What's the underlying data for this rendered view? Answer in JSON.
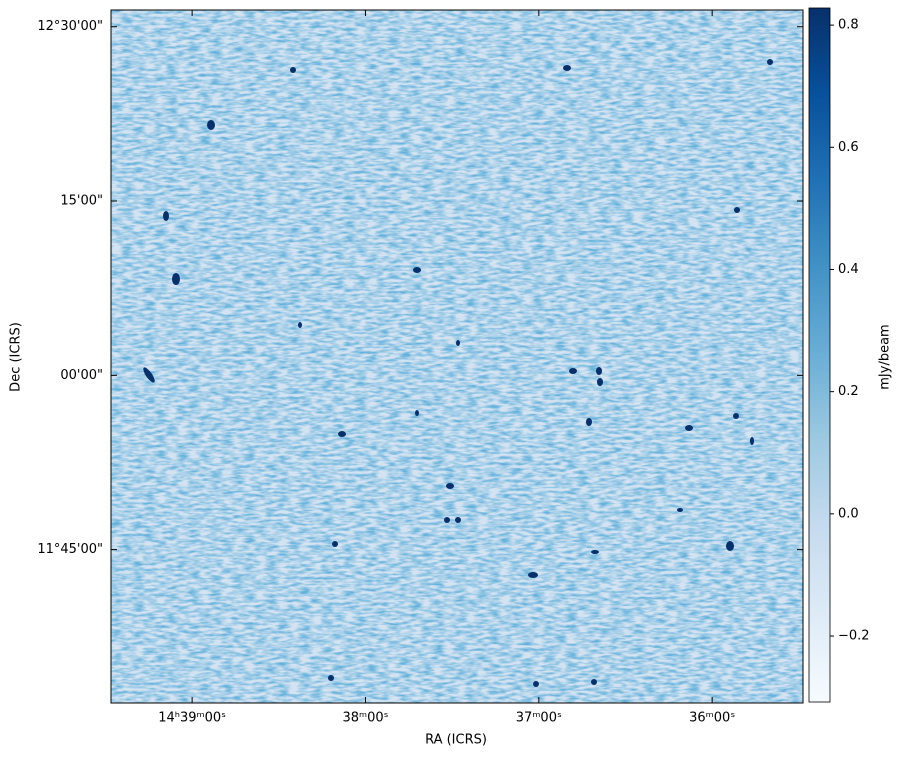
{
  "chart_data": {
    "type": "image",
    "xlabel": "RA (ICRS)",
    "ylabel": "Dec (ICRS)",
    "xlim": [
      219.867,
      218.869
    ],
    "xticks": [
      {
        "value": 219.75,
        "label": "14ʰ39ᵐ00ˢ"
      },
      {
        "value": 219.5,
        "label": "38ᵐ00ˢ"
      },
      {
        "value": 219.25,
        "label": "37ᵐ00ˢ"
      },
      {
        "value": 219.0,
        "label": "36ᵐ00ˢ"
      }
    ],
    "ylim": [
      11.53,
      12.524
    ],
    "yticks": [
      {
        "value": 12.5,
        "label": "12°30'00\""
      },
      {
        "value": 12.25,
        "label": "15'00\""
      },
      {
        "value": 12.0,
        "label": "00'00\""
      },
      {
        "value": 11.75,
        "label": "11°45'00\""
      }
    ],
    "colorbar": {
      "label": "mJy/beam",
      "lim": [
        -0.308,
        0.828
      ],
      "ticks": [
        {
          "value": -0.2,
          "label": "−0.2"
        },
        {
          "value": 0,
          "label": "0.0"
        },
        0.2,
        0.4,
        0.6,
        0.8
      ]
    }
  }
}
